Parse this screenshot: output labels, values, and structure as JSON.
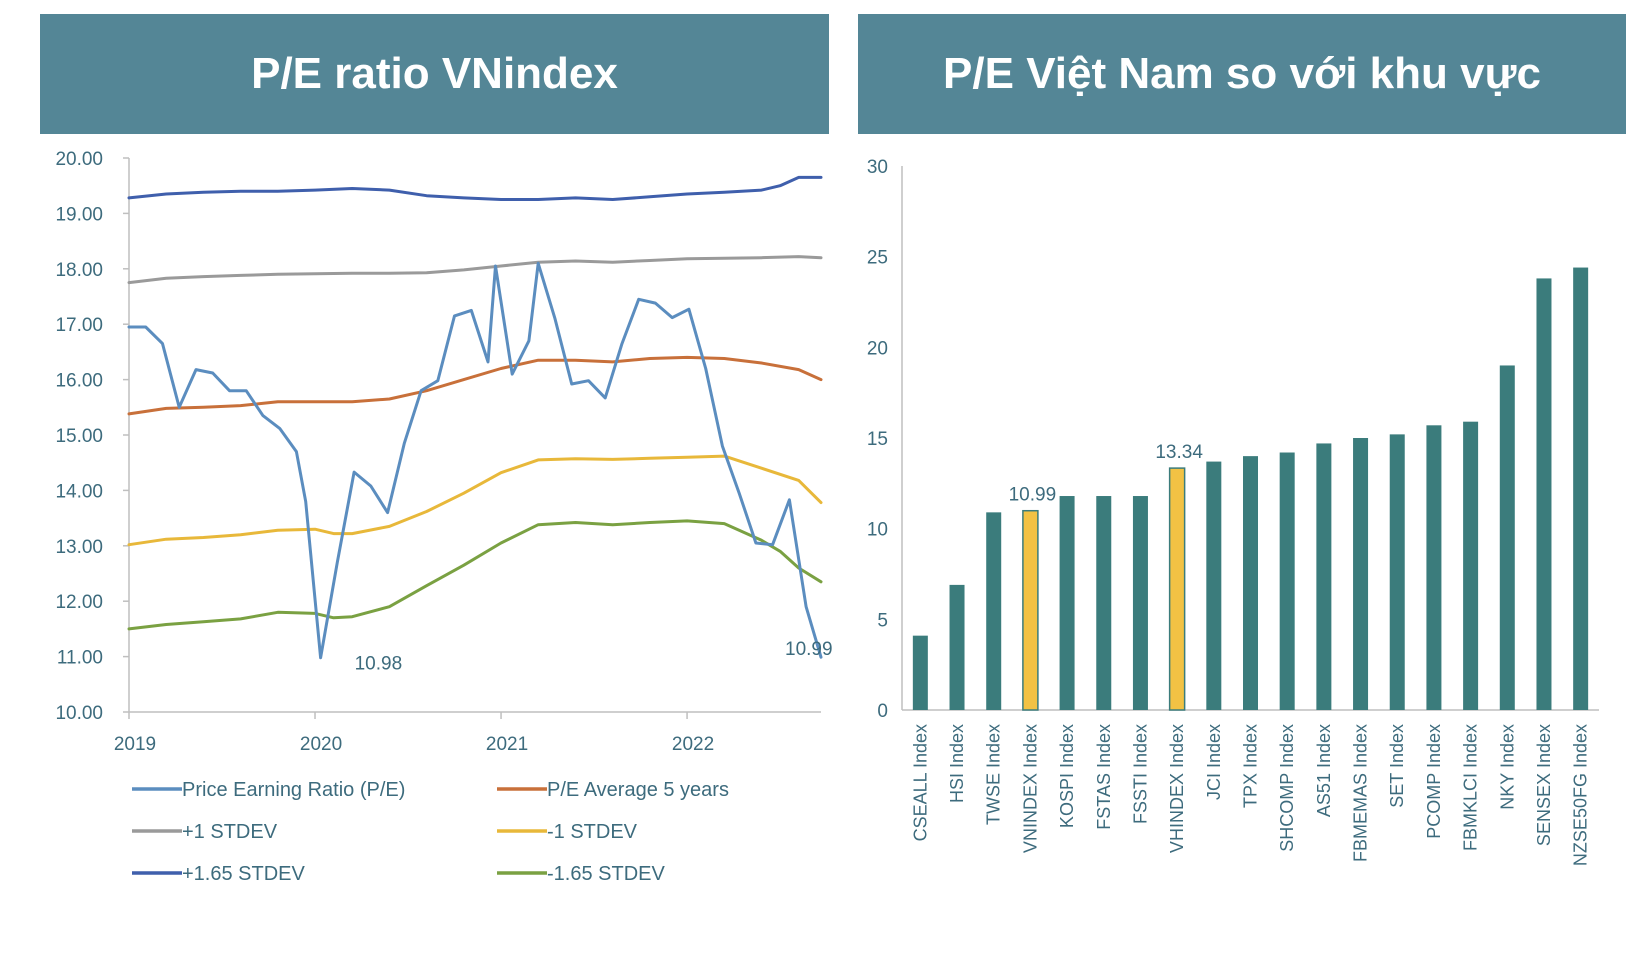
{
  "chart_data": [
    {
      "type": "line",
      "title": "P/E ratio VNindex",
      "x_ticks": [
        "2019",
        "2020",
        "2021",
        "2022"
      ],
      "y_ticks": [
        "20.00",
        "19.00",
        "18.00",
        "17.00",
        "16.00",
        "15.00",
        "14.00",
        "13.00",
        "12.00",
        "11.00",
        "10.00"
      ],
      "ylim": [
        10,
        20
      ],
      "xlim": [
        2019.0,
        2022.72
      ],
      "series": [
        {
          "name": "Price Earning Ratio (P/E)",
          "color": "#5b8dbf",
          "x": [
            2019.0,
            2019.09,
            2019.18,
            2019.27,
            2019.36,
            2019.45,
            2019.54,
            2019.63,
            2019.72,
            2019.81,
            2019.9,
            2019.95,
            2020.03,
            2020.12,
            2020.21,
            2020.3,
            2020.39,
            2020.48,
            2020.57,
            2020.66,
            2020.75,
            2020.84,
            2020.93,
            2020.97,
            2021.06,
            2021.15,
            2021.2,
            2021.29,
            2021.38,
            2021.47,
            2021.56,
            2021.65,
            2021.74,
            2021.83,
            2021.92,
            2022.01,
            2022.1,
            2022.19,
            2022.28,
            2022.37,
            2022.46,
            2022.55,
            2022.64,
            2022.72
          ],
          "values": [
            16.95,
            16.95,
            16.65,
            15.5,
            16.18,
            16.12,
            15.8,
            15.8,
            15.35,
            15.12,
            14.7,
            13.8,
            10.98,
            12.7,
            14.33,
            14.08,
            13.6,
            14.85,
            15.8,
            15.98,
            17.15,
            17.25,
            16.32,
            18.05,
            16.1,
            16.7,
            18.1,
            17.1,
            15.92,
            15.98,
            15.67,
            16.65,
            17.45,
            17.38,
            17.12,
            17.27,
            16.2,
            14.8,
            13.95,
            13.05,
            13.02,
            13.83,
            11.9,
            10.99
          ]
        },
        {
          "name": "P/E Average 5 years",
          "color": "#c8703a",
          "x": [
            2019.0,
            2019.2,
            2019.4,
            2019.6,
            2019.8,
            2020.0,
            2020.2,
            2020.4,
            2020.6,
            2020.8,
            2021.0,
            2021.2,
            2021.4,
            2021.6,
            2021.8,
            2022.0,
            2022.2,
            2022.4,
            2022.6,
            2022.72
          ],
          "values": [
            15.38,
            15.48,
            15.5,
            15.53,
            15.6,
            15.6,
            15.6,
            15.65,
            15.8,
            16.0,
            16.2,
            16.35,
            16.35,
            16.32,
            16.38,
            16.4,
            16.38,
            16.3,
            16.18,
            16.0
          ]
        },
        {
          "name": "+1 STDEV",
          "color": "#9a9a9a",
          "x": [
            2019.0,
            2019.2,
            2019.4,
            2019.6,
            2019.8,
            2020.0,
            2020.2,
            2020.4,
            2020.6,
            2020.8,
            2021.0,
            2021.2,
            2021.4,
            2021.6,
            2021.8,
            2022.0,
            2022.2,
            2022.4,
            2022.6,
            2022.72
          ],
          "values": [
            17.75,
            17.83,
            17.86,
            17.88,
            17.9,
            17.91,
            17.92,
            17.92,
            17.93,
            17.98,
            18.05,
            18.12,
            18.14,
            18.12,
            18.15,
            18.18,
            18.19,
            18.2,
            18.22,
            18.2
          ]
        },
        {
          "name": "-1 STDEV",
          "color": "#e8b83a",
          "x": [
            2019.0,
            2019.2,
            2019.4,
            2019.6,
            2019.8,
            2020.0,
            2020.1,
            2020.2,
            2020.4,
            2020.6,
            2020.8,
            2021.0,
            2021.2,
            2021.4,
            2021.6,
            2021.8,
            2022.0,
            2022.2,
            2022.4,
            2022.6,
            2022.72
          ],
          "values": [
            13.02,
            13.12,
            13.15,
            13.2,
            13.28,
            13.3,
            13.22,
            13.22,
            13.35,
            13.62,
            13.95,
            14.32,
            14.55,
            14.57,
            14.56,
            14.58,
            14.6,
            14.62,
            14.4,
            14.18,
            13.78
          ]
        },
        {
          "name": "+1.65 STDEV",
          "color": "#3f5fac",
          "x": [
            2019.0,
            2019.2,
            2019.4,
            2019.6,
            2019.8,
            2020.0,
            2020.2,
            2020.4,
            2020.6,
            2020.8,
            2021.0,
            2021.2,
            2021.4,
            2021.6,
            2021.8,
            2022.0,
            2022.2,
            2022.4,
            2022.5,
            2022.6,
            2022.72
          ],
          "values": [
            19.28,
            19.35,
            19.38,
            19.4,
            19.4,
            19.42,
            19.45,
            19.42,
            19.32,
            19.28,
            19.25,
            19.25,
            19.28,
            19.25,
            19.3,
            19.35,
            19.38,
            19.42,
            19.5,
            19.65,
            19.65
          ]
        },
        {
          "name": "-1.65 STDEV",
          "color": "#7aa142",
          "x": [
            2019.0,
            2019.2,
            2019.4,
            2019.6,
            2019.8,
            2020.0,
            2020.1,
            2020.2,
            2020.4,
            2020.6,
            2020.8,
            2021.0,
            2021.2,
            2021.4,
            2021.6,
            2021.8,
            2022.0,
            2022.2,
            2022.4,
            2022.5,
            2022.6,
            2022.72
          ],
          "values": [
            11.5,
            11.58,
            11.63,
            11.68,
            11.8,
            11.78,
            11.7,
            11.72,
            11.9,
            12.28,
            12.65,
            13.05,
            13.38,
            13.42,
            13.38,
            13.42,
            13.45,
            13.4,
            13.1,
            12.9,
            12.6,
            12.35
          ]
        }
      ],
      "annotations": [
        {
          "text": "10.98",
          "x": 2020.03,
          "y": 10.98
        },
        {
          "text": "10.99",
          "x": 2022.72,
          "y": 10.99
        }
      ]
    },
    {
      "type": "bar",
      "title": "P/E Việt Nam so với khu vực",
      "categories": [
        "CSEALL Index",
        "HSI Index",
        "TWSE Index",
        "VNINDEX Index",
        "KOSPI Index",
        "FSTAS Index",
        "FSSTI Index",
        "VHINDEX Index",
        "JCI Index",
        "TPX Index",
        "SHCOMP Index",
        "AS51 Index",
        "FBMEMAS Index",
        "SET Index",
        "PCOMP Index",
        "FBMKLCI Index",
        "NKY Index",
        "SENSEX Index",
        "NZSE50FG Index"
      ],
      "values": [
        4.1,
        6.9,
        10.9,
        10.99,
        11.8,
        11.8,
        11.8,
        13.34,
        13.7,
        14.0,
        14.2,
        14.7,
        15.0,
        15.2,
        15.7,
        15.9,
        19.0,
        23.8,
        24.4
      ],
      "highlight": [
        "VNINDEX Index",
        "VHINDEX Index"
      ],
      "highlight_color": "#f2c244",
      "bar_color": "#3b7c7c",
      "ylim": [
        0,
        30
      ],
      "y_ticks": [
        "30",
        "25",
        "20",
        "15",
        "10",
        "5",
        "0"
      ],
      "data_labels": [
        {
          "category": "VNINDEX Index",
          "text": "10.99"
        },
        {
          "category": "VHINDEX Index",
          "text": "13.34"
        }
      ]
    }
  ],
  "colors": {
    "header_bg": "#548696",
    "tick_text": "#3d6b7d",
    "axis": "#bfbfbf"
  }
}
